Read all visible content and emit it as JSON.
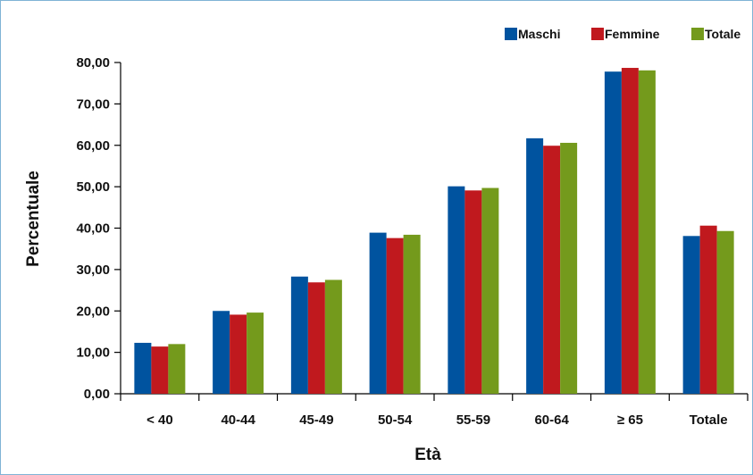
{
  "chart_data": {
    "type": "bar",
    "title": "",
    "xlabel": "Età",
    "ylabel": "Percentuale",
    "categories": [
      "< 40",
      "40-44",
      "45-49",
      "50-54",
      "55-59",
      "60-64",
      "≥ 65",
      "Totale"
    ],
    "series": [
      {
        "name": "Maschi",
        "color": "#00539f",
        "values": [
          12.3,
          20.0,
          28.3,
          38.9,
          50.1,
          61.7,
          77.8,
          38.1
        ]
      },
      {
        "name": "Femmine",
        "color": "#c0191e",
        "values": [
          11.4,
          19.1,
          26.9,
          37.6,
          49.1,
          59.9,
          78.7,
          40.6
        ]
      },
      {
        "name": "Totale",
        "color": "#749a1c",
        "values": [
          12.0,
          19.6,
          27.5,
          38.4,
          49.7,
          60.6,
          78.1,
          39.3
        ]
      }
    ],
    "yticks": [
      "0,00",
      "10,00",
      "20,00",
      "30,00",
      "40,00",
      "50,00",
      "60,00",
      "70,00",
      "80,00"
    ],
    "ylim": [
      0,
      80
    ],
    "legend_position": "top-right",
    "grid": false
  }
}
